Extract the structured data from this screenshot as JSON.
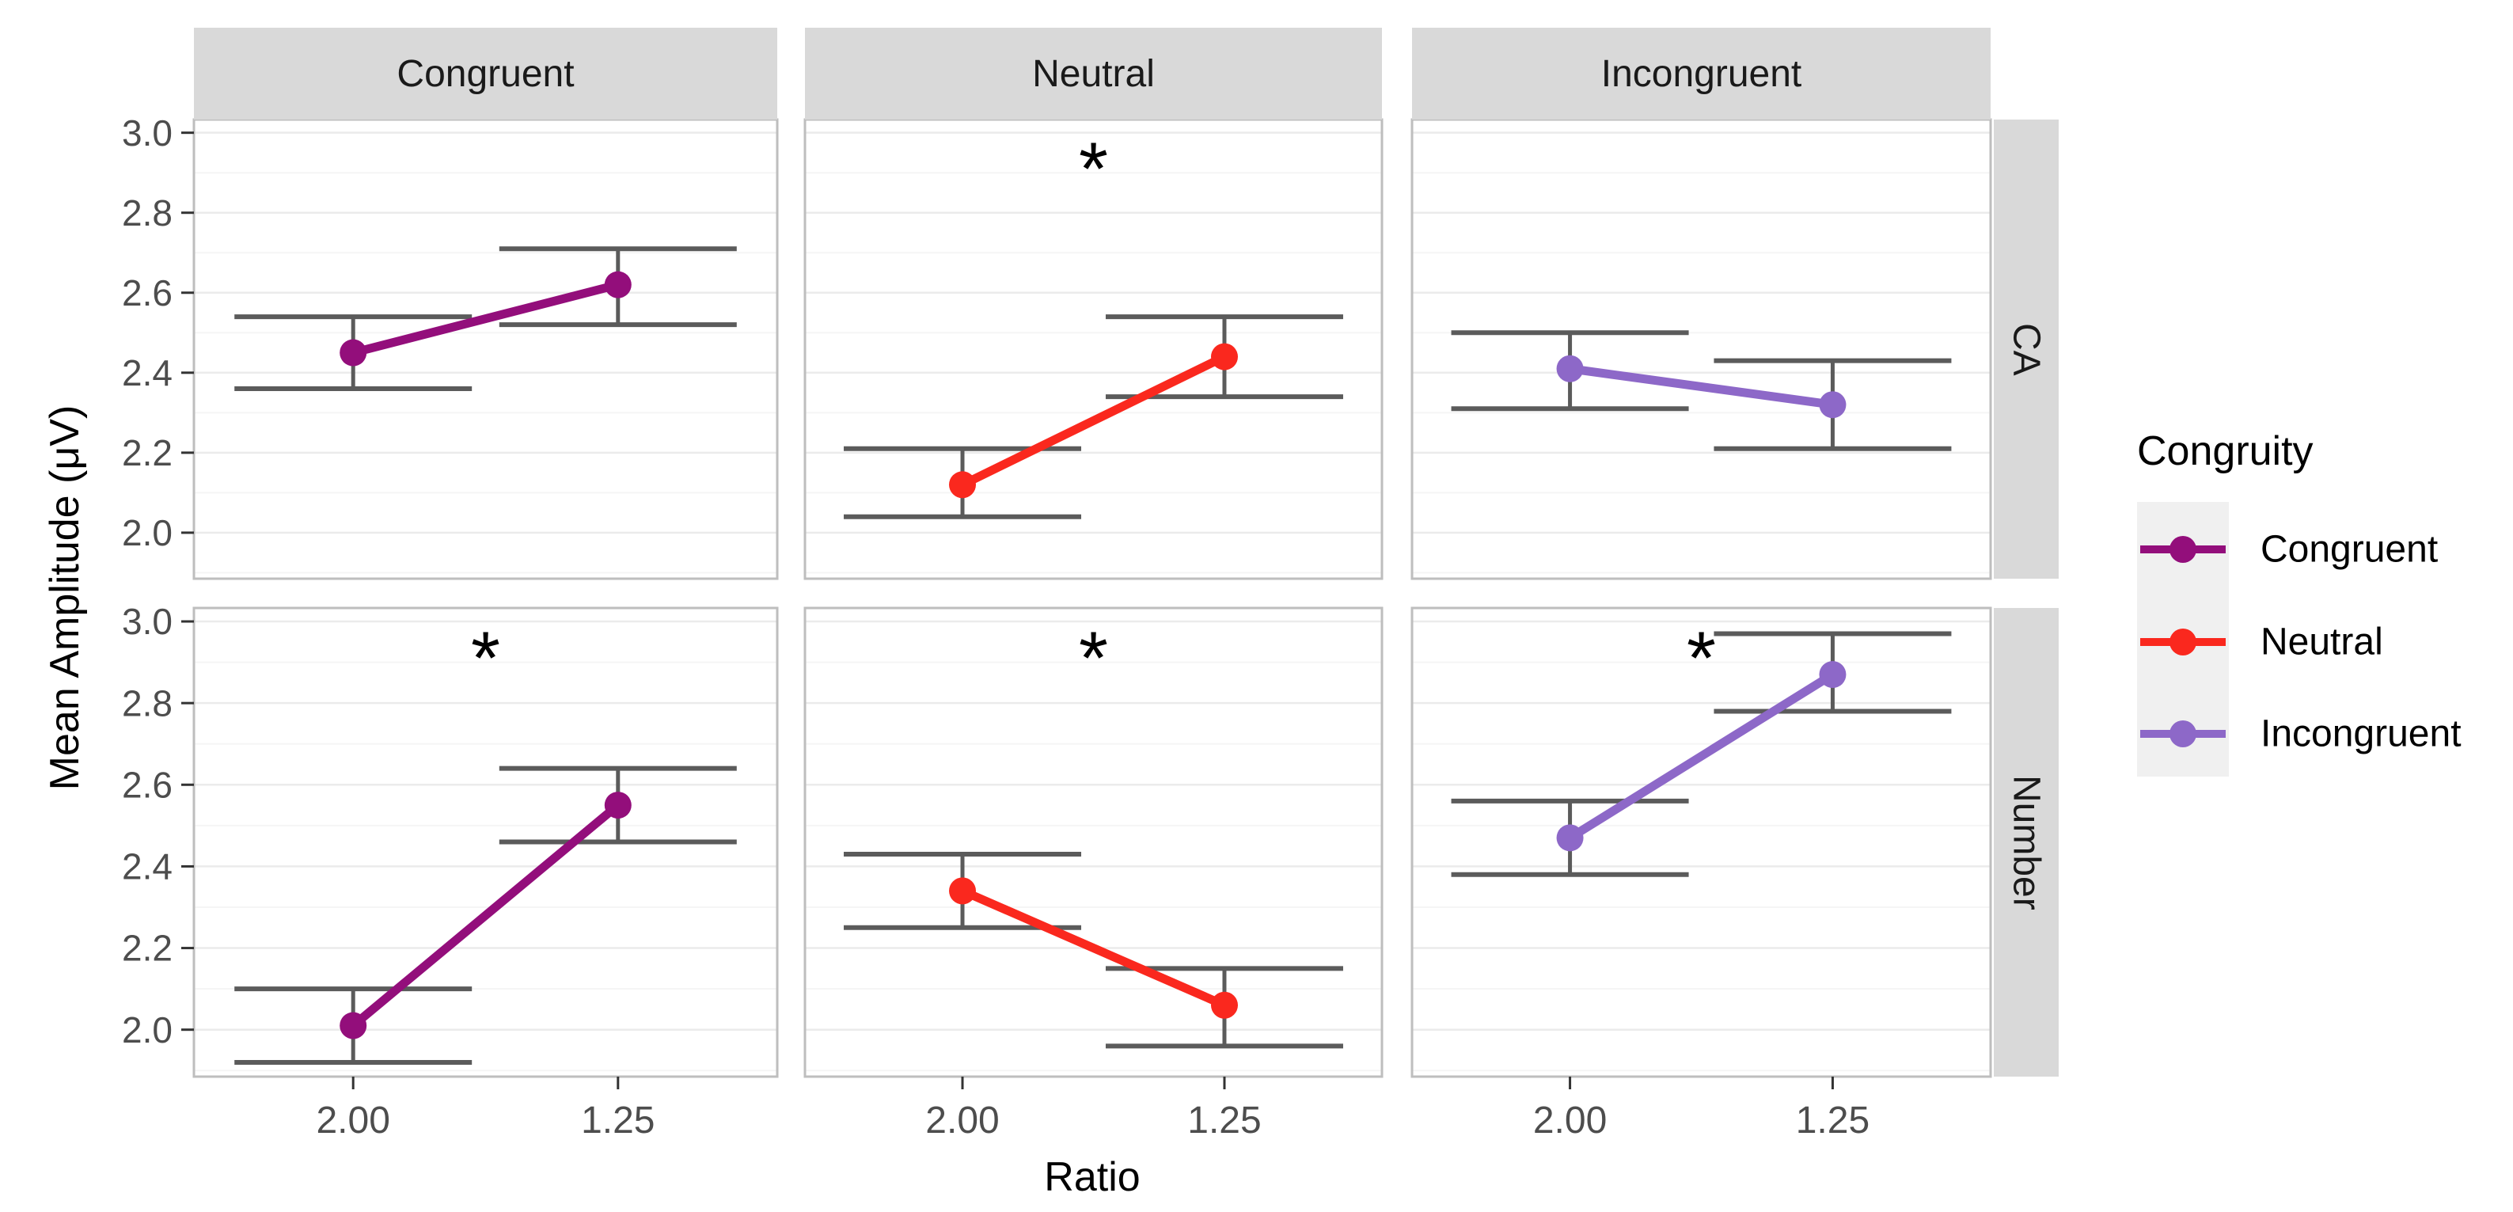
{
  "axes": {
    "x": {
      "label": "Ratio",
      "ticks": [
        "2.00",
        "1.25"
      ]
    },
    "y": {
      "label": "Mean Amplitude (μV)",
      "tick_labels": [
        "3.0",
        "2.8",
        "2.6",
        "2.4",
        "2.2",
        "2.0"
      ]
    }
  },
  "facets": {
    "columns": [
      "Congruent",
      "Neutral",
      "Incongruent"
    ],
    "rows": [
      "CA",
      "Number"
    ]
  },
  "legend": {
    "title": "Congruity",
    "items": [
      {
        "label": "Congruent",
        "color": "#930E7B"
      },
      {
        "label": "Neutral",
        "color": "#FA281E"
      },
      {
        "label": "Incongruent",
        "color": "#8D68C8"
      }
    ]
  },
  "colors": {
    "errorbar": "#5B5B5B",
    "strip_bg": "#D9D9D9",
    "grid_major": "#EBEBEB",
    "grid_minor": "#F5F5F5",
    "panel_border": "#BEBEBE",
    "tick_mark": "#333333",
    "tick_label": "#4D4D4D",
    "legend_key_bg": "#F0F0F0",
    "sig_marker": "#000000"
  },
  "chart_data": {
    "type": "line",
    "x_categories": [
      "2.00",
      "1.25"
    ],
    "xlabel": "Ratio",
    "ylabel": "Mean Amplitude (μV)",
    "ylim": [
      1.885,
      3.033
    ],
    "y_major_ticks": [
      3.0,
      2.8,
      2.6,
      2.4,
      2.2,
      2.0
    ],
    "y_tick_labels": [
      "3.0",
      "2.8",
      "2.6",
      "2.4",
      "2.2",
      "2.0"
    ],
    "y_minor_ticks": [
      2.9,
      2.7,
      2.5,
      2.3,
      2.1,
      1.9
    ],
    "facet_rows": [
      "CA",
      "Number"
    ],
    "facet_columns": [
      "Congruent",
      "Neutral",
      "Incongruent"
    ],
    "grid": true,
    "legend_position": "right",
    "significance_marker": "*",
    "sig_marker_y": 2.945,
    "panels": [
      {
        "row": 0,
        "col": 0,
        "facet_row": "CA",
        "congruity": "Congruent",
        "significant": false,
        "points": [
          {
            "x": "2.00",
            "mean": 2.45,
            "ci_low": 2.36,
            "ci_high": 2.54
          },
          {
            "x": "1.25",
            "mean": 2.62,
            "ci_low": 2.52,
            "ci_high": 2.71
          }
        ]
      },
      {
        "row": 0,
        "col": 1,
        "facet_row": "CA",
        "congruity": "Neutral",
        "significant": true,
        "points": [
          {
            "x": "2.00",
            "mean": 2.12,
            "ci_low": 2.04,
            "ci_high": 2.21
          },
          {
            "x": "1.25",
            "mean": 2.44,
            "ci_low": 2.34,
            "ci_high": 2.54
          }
        ]
      },
      {
        "row": 0,
        "col": 2,
        "facet_row": "CA",
        "congruity": "Incongruent",
        "significant": false,
        "points": [
          {
            "x": "2.00",
            "mean": 2.41,
            "ci_low": 2.31,
            "ci_high": 2.5
          },
          {
            "x": "1.25",
            "mean": 2.32,
            "ci_low": 2.21,
            "ci_high": 2.43
          }
        ]
      },
      {
        "row": 1,
        "col": 0,
        "facet_row": "Number",
        "congruity": "Congruent",
        "significant": true,
        "points": [
          {
            "x": "2.00",
            "mean": 2.01,
            "ci_low": 1.92,
            "ci_high": 2.1
          },
          {
            "x": "1.25",
            "mean": 2.55,
            "ci_low": 2.46,
            "ci_high": 2.64
          }
        ]
      },
      {
        "row": 1,
        "col": 1,
        "facet_row": "Number",
        "congruity": "Neutral",
        "significant": true,
        "points": [
          {
            "x": "2.00",
            "mean": 2.34,
            "ci_low": 2.25,
            "ci_high": 2.43
          },
          {
            "x": "1.25",
            "mean": 2.06,
            "ci_low": 1.96,
            "ci_high": 2.15
          }
        ]
      },
      {
        "row": 1,
        "col": 2,
        "facet_row": "Number",
        "congruity": "Incongruent",
        "significant": true,
        "points": [
          {
            "x": "2.00",
            "mean": 2.47,
            "ci_low": 2.38,
            "ci_high": 2.56
          },
          {
            "x": "1.25",
            "mean": 2.87,
            "ci_low": 2.78,
            "ci_high": 2.97
          }
        ]
      }
    ]
  }
}
